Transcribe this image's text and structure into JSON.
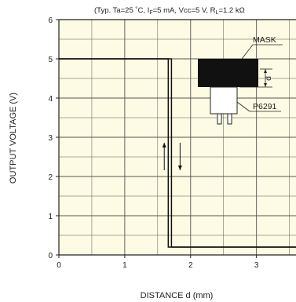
{
  "conditions": "(Typ. Ta=25 ˚C, I",
  "conditions_parts": [
    "(Typ. Ta=25 ˚C, I",
    "F",
    "=5 mA, Vcc=5 V, R",
    "L",
    "=1.2 kΩ"
  ],
  "chart_data": {
    "type": "line",
    "xlabel": "DISTANCE d (mm)",
    "ylabel": "OUTPUT VOLTAGE (V)",
    "xlim": [
      0,
      3.6
    ],
    "ylim": [
      0,
      6
    ],
    "xticks": [
      0,
      1,
      2,
      3
    ],
    "yticks": [
      0,
      1,
      2,
      3,
      4,
      5,
      6
    ],
    "grid": true,
    "background": "#fdfbe3",
    "series": [
      {
        "x": [
          0,
          1.71,
          1.71,
          3.6
        ],
        "y": [
          5,
          5,
          0.2,
          0.2
        ],
        "color": "#111111",
        "style": "solid"
      },
      {
        "x": [
          0,
          1.66,
          1.66,
          3.6
        ],
        "y": [
          5,
          5,
          0.2,
          0.2
        ],
        "color": "#111111",
        "style": "solid"
      }
    ],
    "hysteresis_arrows": [
      {
        "x": 1.6,
        "y_from": 2.16,
        "y_to": 2.86,
        "direction": "up"
      },
      {
        "x": 1.84,
        "y_from": 2.86,
        "y_to": 2.16,
        "direction": "down"
      }
    ],
    "annotations": {
      "mask_label": "MASK",
      "sensor_label": "P6291",
      "distance_label": "d"
    }
  }
}
